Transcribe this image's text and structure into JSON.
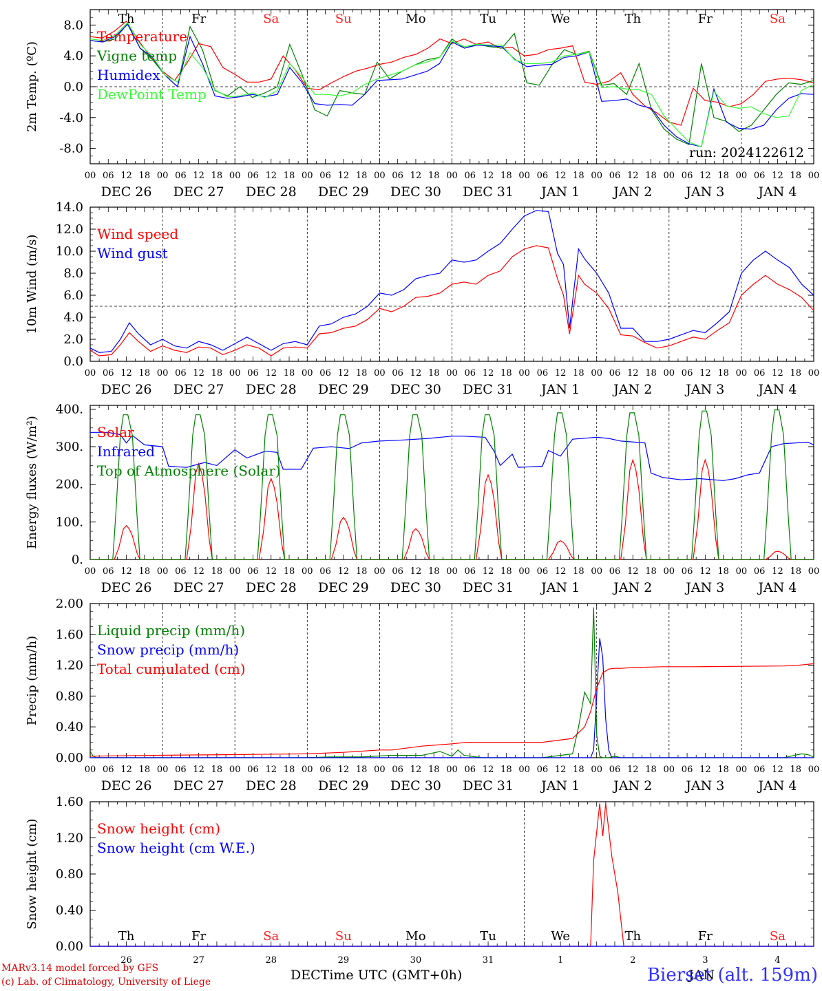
{
  "days": [
    {
      "wd": "Th",
      "weekend": false,
      "label": "DEC 26",
      "num": "26"
    },
    {
      "wd": "Fr",
      "weekend": false,
      "label": "DEC 27",
      "num": "27"
    },
    {
      "wd": "Sa",
      "weekend": true,
      "label": "DEC 28",
      "num": "28"
    },
    {
      "wd": "Su",
      "weekend": true,
      "label": "DEC 29",
      "num": "29"
    },
    {
      "wd": "Mo",
      "weekend": false,
      "label": "DEC 30",
      "num": "30"
    },
    {
      "wd": "Tu",
      "weekend": false,
      "label": "DEC 31",
      "num": "31"
    },
    {
      "wd": "We",
      "weekend": false,
      "label": "JAN  1",
      "num": "1"
    },
    {
      "wd": "Th",
      "weekend": false,
      "label": "JAN  2",
      "num": "2"
    },
    {
      "wd": "Fr",
      "weekend": false,
      "label": "JAN  3",
      "num": "3"
    },
    {
      "wd": "Sa",
      "weekend": true,
      "label": "JAN  4",
      "num": "4"
    }
  ],
  "hour_ticks": [
    "00",
    "06",
    "12",
    "18"
  ],
  "final_tick": "00",
  "colors": {
    "red": "#ff0000",
    "green": "#008000",
    "blue": "#0000ff",
    "lightgreen": "#33ff33",
    "weekend": "#ff2020"
  },
  "run_label": "run: 2024122612",
  "bottom_axis": {
    "month_left": "DEC",
    "month_right": "JAN",
    "title": "Time UTC (GMT+0h)"
  },
  "credit_line1": "MARv3.14 model forced by GFS",
  "credit_line2": "(c) Lab. of Climatology, University of Liege",
  "station": "Bierset (alt. 159m)",
  "chart_data": [
    {
      "type": "line",
      "ylabel": "2m Temp. (ºC)",
      "ylim": [
        -10,
        10
      ],
      "yticks": [
        "-8.0",
        "-4.0",
        "0.0",
        "4.0",
        "8.0"
      ],
      "ytick_values": [
        -8,
        -4,
        0,
        4,
        8
      ],
      "ref_line": 0,
      "x_hours": [
        0,
        6,
        10,
        13,
        18,
        22,
        26,
        30,
        33,
        36,
        38,
        40,
        43,
        45,
        48,
        52,
        55,
        59,
        62,
        65,
        68,
        72,
        76,
        78,
        81,
        84,
        87,
        90,
        94,
        100,
        105,
        110,
        115,
        120,
        126,
        130,
        135,
        140,
        145,
        150,
        155,
        158,
        162,
        166,
        170,
        174,
        178,
        180,
        184,
        188,
        192,
        196,
        200,
        204,
        209,
        213,
        216,
        219,
        222,
        226,
        229,
        232,
        236,
        240
      ],
      "series": [
        {
          "name": "Temperature",
          "color": "red",
          "values": [
            6.5,
            6.3,
            7.2,
            8.5,
            6.0,
            3.9,
            2.0,
            0.8,
            3.0,
            5.6,
            5.2,
            2.5,
            1.6,
            0.6,
            0.6,
            1.0,
            4.0,
            2.2,
            -0.2,
            -0.4,
            0.5,
            1.3,
            2.0,
            2.4,
            2.9,
            3.2,
            3.8,
            4.2,
            5.0,
            6.2,
            5.6,
            6.2,
            5.5,
            5.8,
            5.0,
            5.1,
            4.0,
            4.2,
            4.8,
            5.0,
            5.3,
            0.6,
            0.3,
            0.7,
            1.8,
            -1.0,
            -2.5,
            -3.4,
            -4.6,
            -5.0,
            -0.2,
            -1.8,
            -2.0,
            -2.6,
            -2.2,
            -1.0,
            0.7,
            1.0,
            1.1,
            0.9,
            0.5
          ],
          "x_len": 61
        },
        {
          "name": "Vigne temp",
          "color": "green",
          "values": [
            6.0,
            5.8,
            6.2,
            8.2,
            5.0,
            3.5,
            1.5,
            0.0,
            7.8,
            4.8,
            -0.5,
            -1.2,
            0.0,
            -1.4,
            -0.8,
            0.0,
            5.5,
            1.5,
            -3.0,
            -3.8,
            -0.5,
            -0.8,
            -1.0,
            3.2,
            1.0,
            2.0,
            2.8,
            3.5,
            3.8,
            6.2,
            5.0,
            5.5,
            5.2,
            5.0,
            6.9,
            0.5,
            0.2,
            2.8,
            4.8,
            4.2,
            4.6,
            0.2,
            0.4,
            -1.0,
            3.0,
            -3.0,
            -5.5,
            -6.8,
            -7.5,
            3.0,
            -4.0,
            -4.5,
            -5.8,
            -5.0,
            -3.0,
            -1.0,
            0.5,
            0.3,
            0.8
          ],
          "x_len": 59
        },
        {
          "name": "Humidex",
          "color": "blue",
          "values": [
            6.0,
            5.8,
            6.5,
            8.1,
            5.0,
            3.8,
            1.5,
            0.0,
            6.5,
            3.0,
            -1.2,
            -1.5,
            -1.3,
            -1.0,
            -1.3,
            -1.0,
            2.5,
            0.5,
            -2.2,
            -2.4,
            -2.3,
            -2.4,
            -1.0,
            0.8,
            0.9,
            1.0,
            1.5,
            2.0,
            3.0,
            5.8,
            5.0,
            5.4,
            5.3,
            5.2,
            3.6,
            2.6,
            2.8,
            2.9,
            3.8,
            4.0,
            4.5,
            -1.9,
            -1.8,
            -1.6,
            -2.4,
            -2.8,
            -5.0,
            -6.5,
            -7.4,
            -7.8,
            -0.3,
            -4.6,
            -5.4,
            -5.5,
            -5.0,
            -3.0,
            -1.5,
            -0.9,
            -1.0
          ],
          "x_len": 59
        },
        {
          "name": "DewPoint Temp",
          "color": "lightgreen",
          "values": [
            6.2,
            6.0,
            6.7,
            8.3,
            5.5,
            3.9,
            1.5,
            0.6,
            4.4,
            2.5,
            -0.4,
            -1.3,
            -1.2,
            -0.8,
            -1.4,
            -0.5,
            3.0,
            1.2,
            -1.0,
            -1.0,
            -1.2,
            -0.8,
            0.3,
            1.0,
            1.5,
            2.0,
            2.8,
            3.2,
            3.8,
            5.9,
            5.2,
            5.5,
            5.4,
            5.4,
            3.5,
            3.0,
            3.0,
            3.2,
            4.0,
            4.2,
            4.5,
            -0.1,
            0.0,
            -0.3,
            -0.4,
            -1.0,
            -3.8,
            -5.5,
            -7.2,
            -7.8,
            -0.6,
            -2.5,
            -2.8,
            -2.6,
            -3.5,
            -4.0,
            -3.8,
            -0.5,
            0.3
          ],
          "x_len": 59
        }
      ]
    },
    {
      "type": "line",
      "ylabel": "10m Wind (m/s)",
      "ylim": [
        0,
        14
      ],
      "yticks": [
        "0.0",
        "2.0",
        "4.0",
        "6.0",
        "8.0",
        "10.0",
        "12.0",
        "14.0"
      ],
      "ytick_values": [
        0,
        2,
        4,
        6,
        8,
        10,
        12,
        14
      ],
      "ref_line": 5,
      "x_hours": [
        0,
        3,
        7,
        10,
        13,
        16,
        20,
        24,
        28,
        32,
        36,
        40,
        44,
        48,
        52,
        56,
        60,
        64,
        68,
        72,
        76,
        80,
        84,
        88,
        92,
        96,
        100,
        104,
        108,
        112,
        116,
        120,
        124,
        128,
        132,
        136,
        140,
        144,
        148,
        152,
        155,
        157,
        159,
        162,
        164,
        168,
        172,
        176,
        180,
        184,
        188,
        192,
        196,
        200,
        204,
        208,
        212,
        216,
        220,
        224,
        228,
        232,
        236,
        240
      ],
      "series": [
        {
          "name": "Wind speed",
          "color": "red",
          "values": [
            1.0,
            0.5,
            0.6,
            1.5,
            2.6,
            1.8,
            0.9,
            1.4,
            1.0,
            0.8,
            1.3,
            1.2,
            0.6,
            1.0,
            1.5,
            1.2,
            0.5,
            1.2,
            1.3,
            1.2,
            2.5,
            2.6,
            3.0,
            3.2,
            3.8,
            4.8,
            4.5,
            5.0,
            5.8,
            5.9,
            6.2,
            7.0,
            7.2,
            7.0,
            7.8,
            8.2,
            9.5,
            10.2,
            10.5,
            10.3,
            7.5,
            6.0,
            2.5,
            7.8,
            7.0,
            6.2,
            4.8,
            2.4,
            2.3,
            1.7,
            1.2,
            1.4,
            1.8,
            2.2,
            2.0,
            2.8,
            3.5,
            6.0,
            7.0,
            7.8,
            7.0,
            6.5,
            5.8,
            4.6
          ]
        },
        {
          "name": "Wind gust",
          "color": "blue",
          "values": [
            1.2,
            0.8,
            0.9,
            2.0,
            3.5,
            2.5,
            1.5,
            2.0,
            1.4,
            1.2,
            1.8,
            1.5,
            1.0,
            1.6,
            2.2,
            1.6,
            1.0,
            1.6,
            1.8,
            1.5,
            3.2,
            3.4,
            4.0,
            4.3,
            5.0,
            6.2,
            6.0,
            6.5,
            7.5,
            7.8,
            8.0,
            9.2,
            9.0,
            9.2,
            10.0,
            10.7,
            12.0,
            13.2,
            13.7,
            13.6,
            9.8,
            8.8,
            3.0,
            10.2,
            9.3,
            8.0,
            6.2,
            3.0,
            3.0,
            1.8,
            1.8,
            2.0,
            2.4,
            2.8,
            2.6,
            3.5,
            4.5,
            8.0,
            9.2,
            10.0,
            9.2,
            8.5,
            7.0,
            6.0
          ]
        }
      ]
    },
    {
      "type": "line",
      "ylabel": "Energy fluxes (W/m²)",
      "ylim": [
        0,
        410
      ],
      "yticks": [
        "0.",
        "100.",
        "200.",
        "300.",
        "400."
      ],
      "ytick_values": [
        0,
        100,
        200,
        300,
        400
      ],
      "ref_line": null,
      "x_hours": [
        0,
        6,
        9,
        10,
        11,
        12,
        13,
        14,
        15,
        16,
        17,
        18,
        24
      ],
      "daily": true,
      "series": [
        {
          "name": "Solar",
          "color": "red",
          "day_peaks": [
            90,
            255,
            215,
            112,
            82,
            225,
            50,
            265,
            265,
            22
          ]
        },
        {
          "name": "Infrared",
          "color": "blue",
          "values": [
            338,
            338,
            332,
            310,
            330,
            305,
            300,
            248,
            245,
            258,
            250,
            292,
            270,
            288,
            285,
            240,
            240,
            296,
            300,
            295,
            310,
            315,
            318,
            322,
            328,
            328,
            325,
            288,
            250,
            280,
            245,
            248,
            290,
            275,
            320,
            325,
            322,
            315,
            310,
            230,
            218,
            212,
            215,
            210,
            215,
            225,
            230,
            300,
            308,
            310,
            312,
            305
          ],
          "x_hours": [
            0,
            6,
            10,
            12,
            14,
            18,
            24,
            26,
            32,
            38,
            42,
            48,
            52,
            58,
            62,
            64,
            70,
            74,
            80,
            86,
            90,
            96,
            104,
            112,
            120,
            124,
            131,
            134,
            136,
            140,
            142,
            150,
            152,
            156,
            160,
            168,
            172,
            176,
            184,
            186,
            190,
            196,
            202,
            210,
            214,
            218,
            222,
            226,
            230,
            234,
            238,
            240
          ]
        },
        {
          "name": "Top of Atmosphere (Solar)",
          "color": "green",
          "day_peaks": [
            385,
            385,
            385,
            385,
            385,
            385,
            390,
            390,
            395,
            398
          ]
        }
      ]
    },
    {
      "type": "line",
      "ylabel": "Precip (mm/h)",
      "ylim": [
        0,
        2.0
      ],
      "yticks": [
        "0.00",
        "0.40",
        "0.80",
        "1.20",
        "1.60",
        "2.00"
      ],
      "ytick_values": [
        0,
        0.4,
        0.8,
        1.2,
        1.6,
        2.0
      ],
      "ref_line": null,
      "series": [
        {
          "name": "Liquid precip (mm/h)",
          "color": "green",
          "x": [
            0,
            1,
            2,
            70,
            80,
            90,
            100,
            110,
            116,
            120,
            122,
            124,
            130,
            150,
            160,
            162,
            164,
            166,
            167,
            168,
            169,
            170,
            172,
            174,
            176,
            180,
            190,
            230,
            236,
            238,
            240
          ],
          "values": [
            0.08,
            0.02,
            0.0,
            0.0,
            0.01,
            0.01,
            0.03,
            0.03,
            0.08,
            0.02,
            0.1,
            0.03,
            0.0,
            0.0,
            0.05,
            0.4,
            0.85,
            0.7,
            1.95,
            0.3,
            0.02,
            0.0,
            0.0,
            0.02,
            0.0,
            0.0,
            0.0,
            0.0,
            0.05,
            0.04,
            0.01
          ]
        },
        {
          "name": "Snow precip (mm/h)",
          "color": "blue",
          "x": [
            0,
            160,
            166,
            167,
            168,
            169,
            170,
            171,
            172,
            173,
            174,
            180,
            240
          ],
          "values": [
            0,
            0,
            0,
            0.1,
            0.8,
            1.55,
            1.3,
            0.5,
            0.1,
            0,
            0,
            0,
            0
          ]
        },
        {
          "name": "Total cumulated (cm)",
          "color": "red",
          "x": [
            0,
            20,
            48,
            72,
            84,
            96,
            100,
            110,
            120,
            125,
            140,
            150,
            160,
            164,
            166,
            168,
            170,
            172,
            174,
            176,
            180,
            190,
            200,
            230,
            235,
            240
          ],
          "values": [
            0.02,
            0.03,
            0.04,
            0.05,
            0.07,
            0.1,
            0.1,
            0.15,
            0.18,
            0.2,
            0.2,
            0.2,
            0.25,
            0.4,
            0.6,
            0.9,
            1.1,
            1.15,
            1.16,
            1.16,
            1.17,
            1.18,
            1.18,
            1.19,
            1.2,
            1.22
          ]
        }
      ]
    },
    {
      "type": "line",
      "ylabel": "Snow height (cm)",
      "ylim": [
        0,
        1.6
      ],
      "yticks": [
        "0.00",
        "0.40",
        "0.80",
        "1.20",
        "1.60"
      ],
      "ytick_values": [
        0,
        0.4,
        0.8,
        1.2,
        1.6
      ],
      "ref_line": null,
      "series": [
        {
          "name": "Snow height (cm)",
          "color": "red",
          "x": [
            0,
            166,
            167,
            169,
            170,
            171,
            173,
            175,
            177,
            240
          ],
          "values": [
            0,
            0,
            0.95,
            1.58,
            1.22,
            1.58,
            1.0,
            0.6,
            0,
            0
          ]
        },
        {
          "name": "Snow height (cm W.E.)",
          "color": "blue",
          "x": [
            0,
            240
          ],
          "values": [
            0,
            0
          ]
        }
      ]
    }
  ]
}
